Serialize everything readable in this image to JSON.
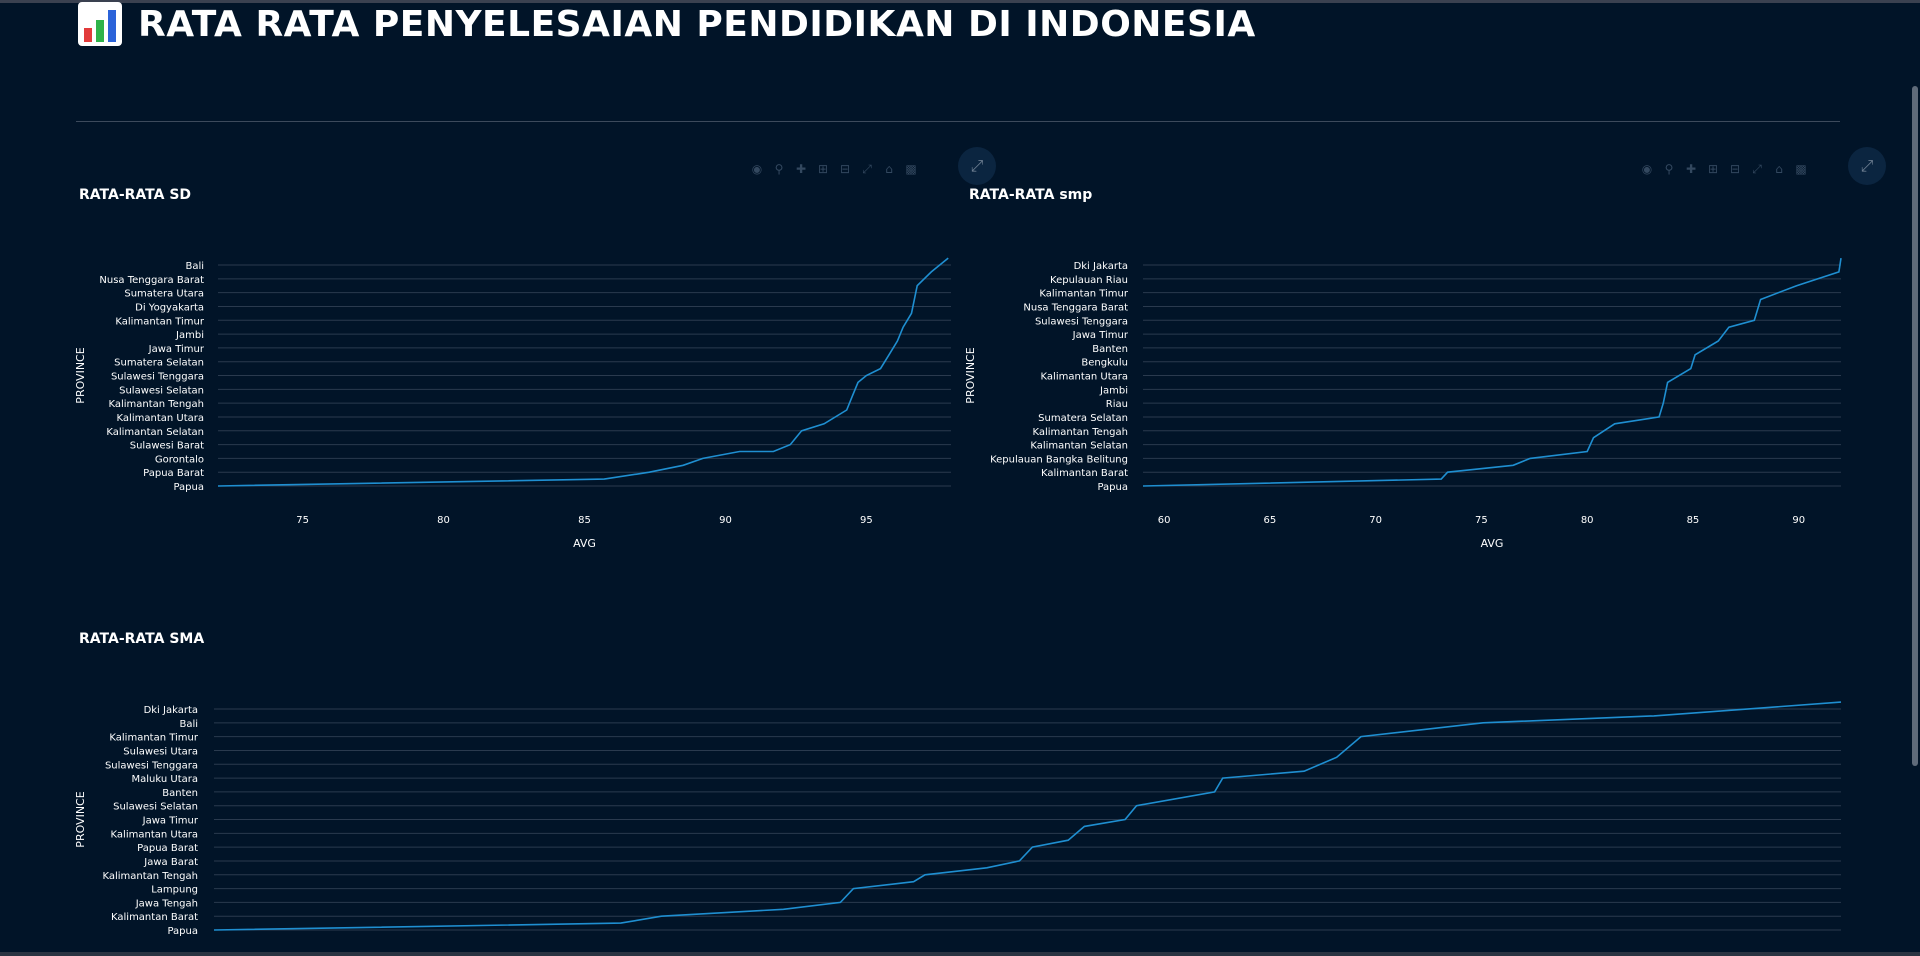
{
  "page": {
    "title": "RATA RATA PENYELESAIAN PENDIDIKAN DI INDONESIA",
    "title_icon": "bar-chart-icon",
    "background": "#011428"
  },
  "toolbar": {
    "icons": [
      "camera-icon",
      "zoom-icon",
      "pan-icon",
      "zoom-in-icon",
      "zoom-out-icon",
      "autoscale-icon",
      "reset-axes-icon",
      "plotly-logo-icon"
    ],
    "expand_icon": "expand-icon"
  },
  "chart_data": [
    {
      "type": "line",
      "title": "RATA-RATA SD",
      "xlabel": "AVG",
      "ylabel": "PROVINCE",
      "line_color": "#1f8fd1",
      "xlim": [
        72,
        98
      ],
      "xticks": [
        75,
        80,
        85,
        90,
        95
      ],
      "y_tick_labels": [
        "Bali",
        "Nusa Tenggara Barat",
        "Sumatera Utara",
        "Di Yogyakarta",
        "Kalimantan Timur",
        "Jambi",
        "Jawa Timur",
        "Sumatera Selatan",
        "Sulawesi Tenggara",
        "Sulawesi Selatan",
        "Kalimantan Tengah",
        "Kalimantan Utara",
        "Kalimantan Selatan",
        "Sulawesi Barat",
        "Gorontalo",
        "Papua Barat",
        "Papua"
      ],
      "x": [
        72.0,
        85.7,
        87.3,
        88.5,
        89.2,
        90.5,
        91.7,
        92.3,
        92.5,
        92.7,
        93.5,
        94.3,
        94.5,
        94.7,
        95.0,
        95.5,
        95.8,
        96.1,
        96.3,
        96.6,
        96.8,
        97.3,
        97.9
      ],
      "y": [
        0,
        0.5,
        1.0,
        1.5,
        2.0,
        2.5,
        2.5,
        3.0,
        3.5,
        4.0,
        4.5,
        5.5,
        6.5,
        7.5,
        8.0,
        8.5,
        9.5,
        10.5,
        11.5,
        12.5,
        14.5,
        15.5,
        16.5
      ]
    },
    {
      "type": "line",
      "title": "RATA-RATA smp",
      "xlabel": "AVG",
      "ylabel": "PROVINCE",
      "line_color": "#1f8fd1",
      "xlim": [
        59,
        92
      ],
      "xticks": [
        60,
        65,
        70,
        75,
        80,
        85,
        90
      ],
      "y_tick_labels": [
        "Dki Jakarta",
        "Kepulauan Riau",
        "Kalimantan Timur",
        "Nusa Tenggara Barat",
        "Sulawesi Tenggara",
        "Jawa Timur",
        "Banten",
        "Bengkulu",
        "Kalimantan Utara",
        "Jambi",
        "Riau",
        "Sumatera Selatan",
        "Kalimantan Tengah",
        "Kalimantan Selatan",
        "Kepulauan Bangka Belitung",
        "Kalimantan Barat",
        "Papua"
      ],
      "x": [
        59.0,
        73.1,
        73.4,
        76.5,
        77.3,
        80.0,
        80.3,
        81.3,
        83.4,
        83.6,
        83.8,
        84.9,
        85.1,
        86.2,
        86.7,
        87.9,
        88.2,
        89.9,
        91.9,
        92.0
      ],
      "y": [
        0,
        0.5,
        1.0,
        1.5,
        2.0,
        2.5,
        3.5,
        4.5,
        5.0,
        6.0,
        7.5,
        8.5,
        9.5,
        10.5,
        11.5,
        12.0,
        13.5,
        14.5,
        15.5,
        16.5
      ]
    },
    {
      "type": "line",
      "title": "RATA-RATA SMA",
      "xlabel": "",
      "ylabel": "PROVINCE",
      "line_color": "#1f8fd1",
      "xlim": [
        0,
        100
      ],
      "xticks": [],
      "y_tick_labels": [
        "Dki Jakarta",
        "Bali",
        "Kalimantan Timur",
        "Sulawesi Utara",
        "Sulawesi Tenggara",
        "Maluku Utara",
        "Banten",
        "Sulawesi Selatan",
        "Jawa Timur",
        "Kalimantan Utara",
        "Papua Barat",
        "Jawa Barat",
        "Kalimantan Tengah",
        "Lampung",
        "Jawa Tengah",
        "Kalimantan Barat",
        "Papua"
      ],
      "x": [
        0,
        25,
        27.5,
        35,
        38.5,
        39.3,
        43,
        43.7,
        47.5,
        49.5,
        50.3,
        52.5,
        53.5,
        56,
        56.7,
        61.5,
        62,
        67,
        69,
        70.5,
        78,
        88.5,
        100
      ],
      "y": [
        0,
        0.5,
        1.0,
        1.5,
        2.0,
        3.0,
        3.5,
        4.0,
        4.5,
        5.0,
        6.0,
        6.5,
        7.5,
        8.0,
        9.0,
        10.0,
        11.0,
        11.5,
        12.5,
        14.0,
        15.0,
        15.5,
        16.5
      ]
    }
  ]
}
